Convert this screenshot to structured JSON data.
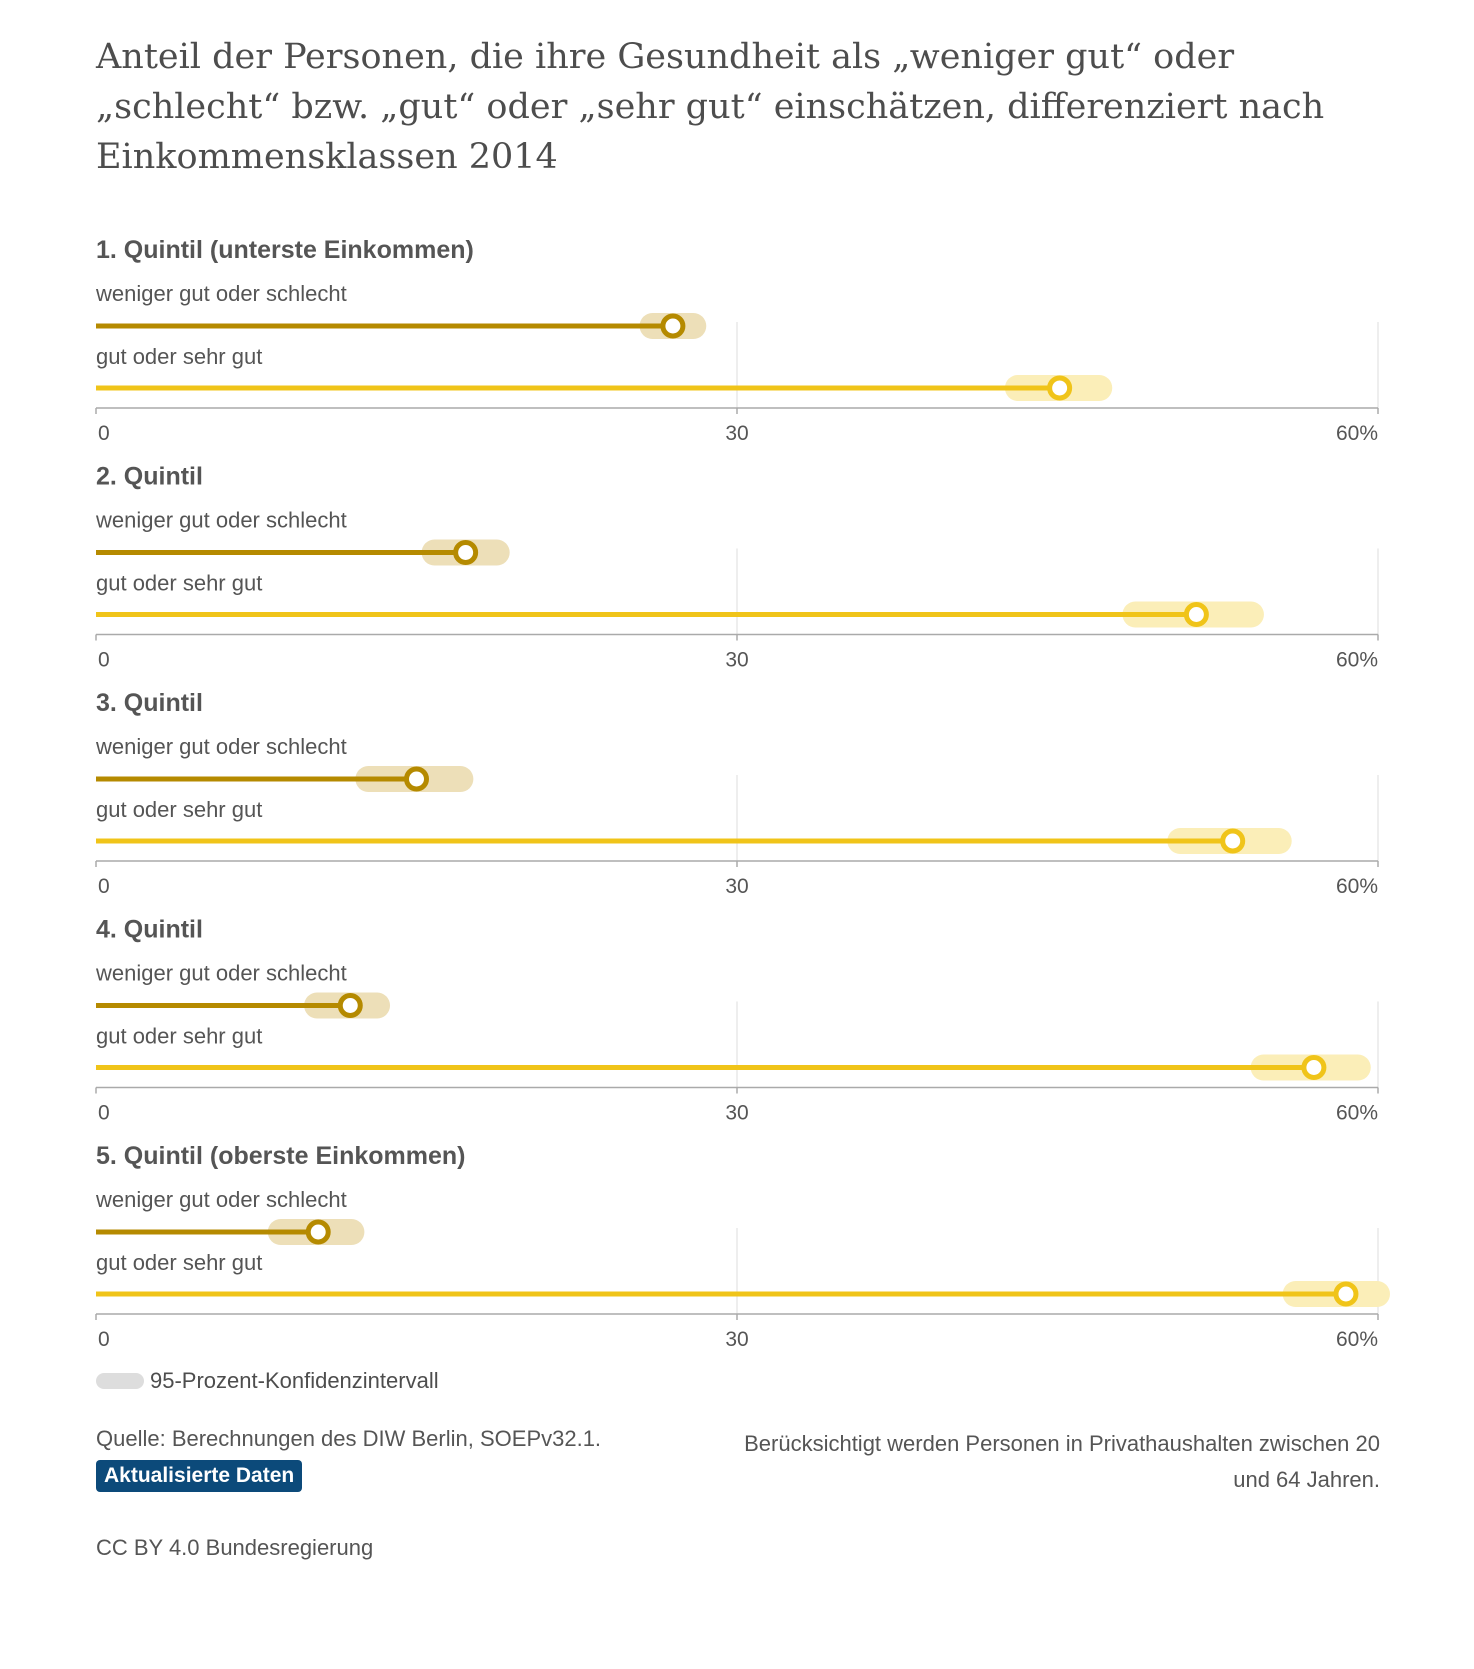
{
  "title": "Anteil der Personen, die ihre Gesundheit als „weniger gut“ oder „schlecht“ bzw. „gut“ oder „sehr gut“ einschätzen, differenziert nach Einkommensklassen 2014",
  "colors": {
    "weniger": "#b58a00",
    "weniger_ci": "#eddfb8",
    "gut": "#f0c419",
    "gut_ci": "#fbeeb8",
    "grid": "#dddddd",
    "axis": "#aaaaaa",
    "legend_swatch": "#dddddd",
    "badge": "#0c4a7a"
  },
  "chart_data": {
    "type": "dot",
    "xlim": [
      0,
      60
    ],
    "ticks": [
      "0",
      "30",
      "60%"
    ],
    "tick_values": [
      0,
      30,
      60
    ],
    "series_labels": [
      "weniger gut oder schlecht",
      "gut oder sehr gut"
    ],
    "panels": [
      {
        "title": "1. Quintil (unterste Einkommen)",
        "weniger": {
          "value": 27,
          "ci": [
            26,
            28
          ]
        },
        "gut": {
          "value": 45.1,
          "ci": [
            43.1,
            47.0
          ]
        }
      },
      {
        "title": "2. Quintil",
        "weniger": {
          "value": 17.3,
          "ci": [
            15.8,
            18.8
          ]
        },
        "gut": {
          "value": 51.5,
          "ci": [
            48.6,
            54.1
          ]
        }
      },
      {
        "title": "3. Quintil",
        "weniger": {
          "value": 15,
          "ci": [
            12.7,
            17.1
          ]
        },
        "gut": {
          "value": 53.2,
          "ci": [
            50.7,
            55.4
          ]
        }
      },
      {
        "title": "4. Quintil",
        "weniger": {
          "value": 11.9,
          "ci": [
            10.3,
            13.2
          ]
        },
        "gut": {
          "value": 57,
          "ci": [
            54.6,
            59.1
          ]
        }
      },
      {
        "title": "5. Quintil (oberste Einkommen)",
        "weniger": {
          "value": 10.4,
          "ci": [
            8.6,
            12.0
          ]
        },
        "gut": {
          "value": 58.5,
          "ci": [
            56.1,
            60.0
          ]
        }
      }
    ]
  },
  "legend": {
    "label": "95-Prozent-Konfidenzintervall"
  },
  "footer": {
    "source": "Quelle: Berechnungen des DIW Berlin, SOEPv32.1.",
    "badge": "Aktualisierte Daten",
    "note": "Berücksichtigt werden Personen in Privathaushalten zwischen 20 und 64 Jahren.",
    "license": "CC BY 4.0 Bundesregierung"
  }
}
